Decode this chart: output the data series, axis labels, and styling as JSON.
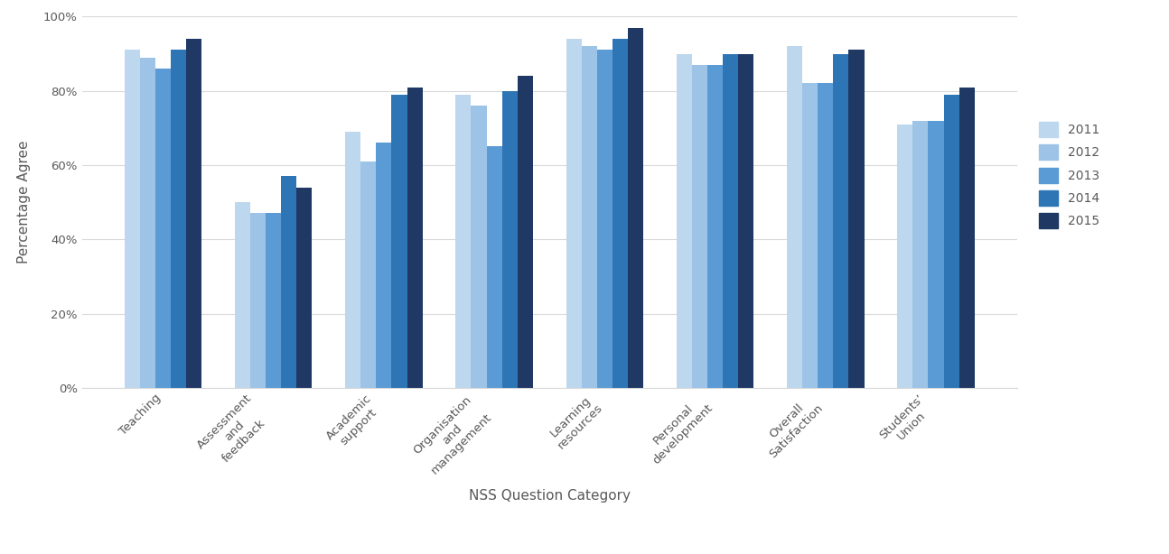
{
  "categories": [
    "Teaching",
    "Assessment\nand\nfeedback",
    "Academic\nsupport",
    "Organisation\nand\nmanagement",
    "Learning\nresources",
    "Personal\ndevelopment",
    "Overall\nSatisfaction",
    "Students’\nUnion"
  ],
  "years": [
    "2011",
    "2012",
    "2013",
    "2014",
    "2015"
  ],
  "values": {
    "Teaching": [
      91,
      89,
      86,
      91,
      94
    ],
    "Assessment\nand\nfeedback": [
      50,
      47,
      47,
      57,
      54
    ],
    "Academic\nsupport": [
      69,
      61,
      66,
      79,
      81
    ],
    "Organisation\nand\nmanagement": [
      79,
      76,
      65,
      80,
      84
    ],
    "Learning\nresources": [
      94,
      92,
      91,
      94,
      97
    ],
    "Personal\ndevelopment": [
      90,
      87,
      87,
      90,
      90
    ],
    "Overall\nSatisfaction": [
      92,
      82,
      82,
      90,
      91
    ],
    "Students’\nUnion": [
      71,
      72,
      72,
      79,
      81
    ]
  },
  "colors": [
    "#BDD7EE",
    "#9DC3E6",
    "#5B9BD5",
    "#2E75B6",
    "#1F3864"
  ],
  "ylabel": "Percentage Agree",
  "xlabel": "NSS Question Category",
  "ylim": [
    0,
    100
  ],
  "yticks": [
    0,
    20,
    40,
    60,
    80,
    100
  ],
  "ytick_labels": [
    "0%",
    "20%",
    "40%",
    "60%",
    "80%",
    "100%"
  ],
  "background_color": "#FFFFFF",
  "grid_color": "#D9D9D9",
  "bar_width": 0.14,
  "axis_label_fontsize": 11,
  "tick_fontsize": 9.5,
  "legend_fontsize": 10
}
